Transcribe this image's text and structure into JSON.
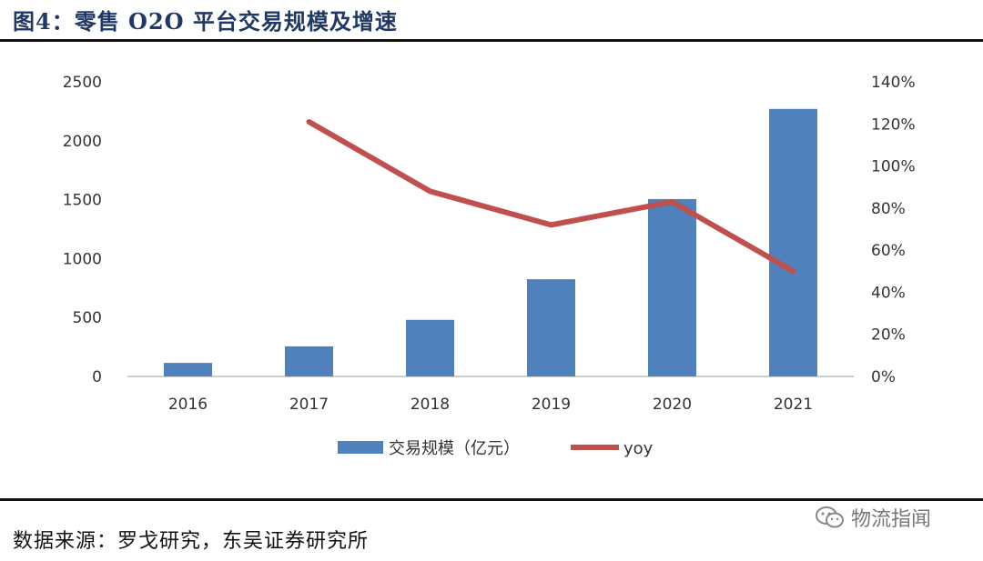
{
  "header": {
    "title": "图4：零售 O2O 平台交易规模及增速"
  },
  "footer": {
    "source": "数据来源：罗戈研究，东吴证券研究所",
    "watermark": "物流指闻"
  },
  "colors": {
    "bar": "#4f81bd",
    "line": "#c0504d",
    "title": "#1f3864"
  },
  "chart_data": {
    "type": "bar",
    "title": "",
    "categories": [
      "2016",
      "2017",
      "2018",
      "2019",
      "2020",
      "2021"
    ],
    "series": [
      {
        "name": "交易规模（亿元）",
        "type": "bar",
        "axis": "left",
        "values": [
          115,
          255,
          480,
          825,
          1505,
          2270
        ]
      },
      {
        "name": "yoy",
        "type": "line",
        "axis": "right",
        "values": [
          null,
          1.21,
          0.88,
          0.72,
          0.83,
          0.5
        ]
      }
    ],
    "y_left": {
      "range": [
        0,
        2500
      ],
      "ticks": [
        "0",
        "500",
        "1000",
        "1500",
        "2000",
        "2500"
      ]
    },
    "y_right": {
      "range": [
        0,
        1.4
      ],
      "ticks": [
        "0%",
        "20%",
        "40%",
        "60%",
        "80%",
        "100%",
        "120%",
        "140%"
      ]
    },
    "grid": false,
    "legend": "bottom"
  }
}
